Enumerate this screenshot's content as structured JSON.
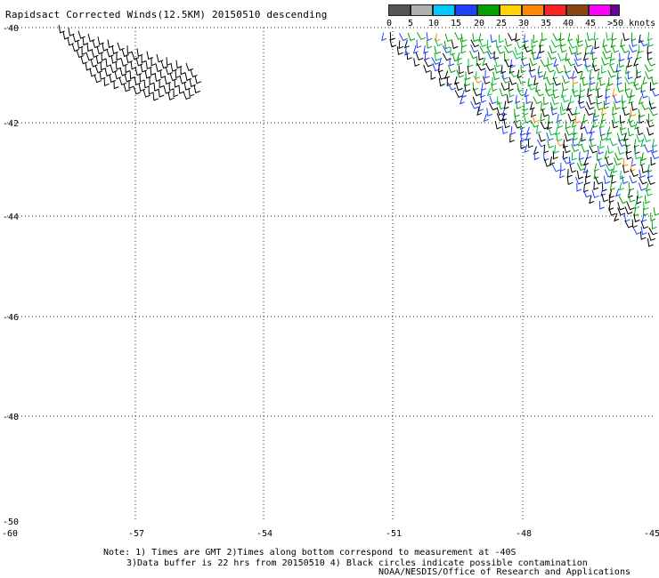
{
  "title": "Rapidsact Corrected Winds(12.5KM) 20150510 descending",
  "colorbar": {
    "labels": [
      "0",
      "5",
      "10",
      "15",
      "20",
      "25",
      "30",
      "35",
      "40",
      "45",
      ">50 knots"
    ],
    "colors": [
      "#555555",
      "#b0b0b0",
      "#00c8ff",
      "#2040ff",
      "#00a000",
      "#ffd400",
      "#ff8800",
      "#ff2020",
      "#8b4513",
      "#ff00ff",
      "#6a00a0"
    ]
  },
  "map": {
    "lon_labels": [
      "-60",
      "-57",
      "-54",
      "-51",
      "-48",
      "-45"
    ],
    "lat_labels": [
      "-40",
      "-42",
      "-44",
      "-46",
      "-48",
      "-50"
    ],
    "lon_range": [
      -60,
      -45
    ],
    "lat_range": [
      -50,
      -40
    ],
    "grid": "dotted"
  },
  "notes": {
    "line1": "Note: 1) Times are GMT 2)Times along bottom correspond to measurement at -40S",
    "line2": "3)Data buffer is 22 hrs from 20150510 4) Black circles indicate possible contamination"
  },
  "credit": "NOAA/NESDIS/Office of Research and Applications"
}
